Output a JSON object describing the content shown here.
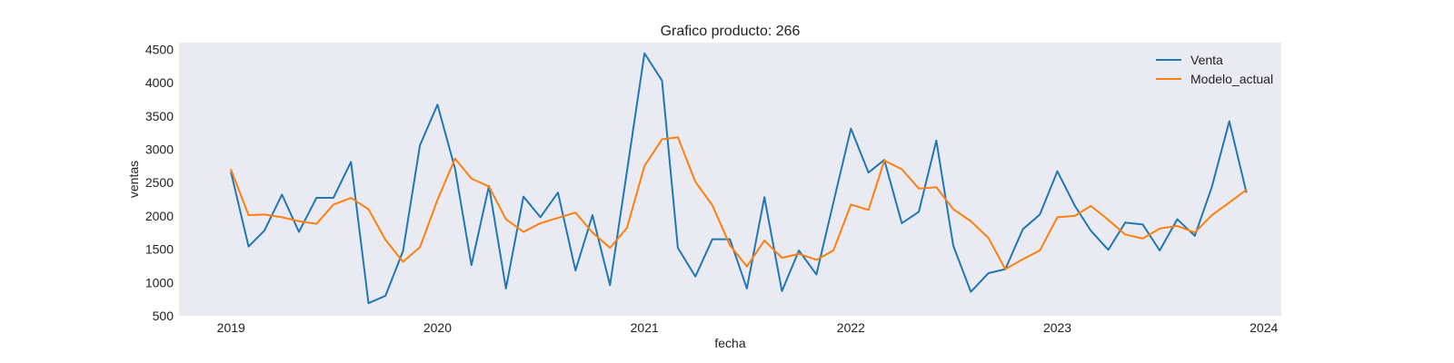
{
  "chart_data": {
    "type": "line",
    "title": "Grafico producto: 266",
    "xlabel": "fecha",
    "ylabel": "ventas",
    "xlim": [
      "2018-10-01",
      "2024-02-01"
    ],
    "ylim": [
      500,
      4600
    ],
    "x_ticks": [
      "2019",
      "2020",
      "2021",
      "2022",
      "2023",
      "2024"
    ],
    "y_ticks": [
      "500",
      "1000",
      "1500",
      "2000",
      "2500",
      "3000",
      "3500",
      "4000",
      "4500"
    ],
    "grid": false,
    "legend_position": "top-right",
    "x": [
      "2019-01",
      "2019-02",
      "2019-03",
      "2019-04",
      "2019-05",
      "2019-06",
      "2019-07",
      "2019-08",
      "2019-09",
      "2019-10",
      "2019-11",
      "2019-12",
      "2020-01",
      "2020-02",
      "2020-03",
      "2020-04",
      "2020-05",
      "2020-06",
      "2020-07",
      "2020-08",
      "2020-09",
      "2020-10",
      "2020-11",
      "2020-12",
      "2021-01",
      "2021-02",
      "2021-03",
      "2021-04",
      "2021-05",
      "2021-06",
      "2021-07",
      "2021-08",
      "2021-09",
      "2021-10",
      "2021-11",
      "2021-12",
      "2022-01",
      "2022-02",
      "2022-03",
      "2022-04",
      "2022-05",
      "2022-06",
      "2022-07",
      "2022-08",
      "2022-09",
      "2022-10",
      "2022-11",
      "2022-12",
      "2023-01",
      "2023-02",
      "2023-03",
      "2023-04",
      "2023-05",
      "2023-06",
      "2023-07",
      "2023-08",
      "2023-09",
      "2023-10",
      "2023-11",
      "2023-12"
    ],
    "series": [
      {
        "name": "Venta",
        "color": "#1f77b4",
        "values": [
          2650,
          1540,
          1780,
          2320,
          1760,
          2270,
          2270,
          2810,
          690,
          800,
          1470,
          3060,
          3670,
          2710,
          1260,
          2450,
          910,
          2290,
          1980,
          2350,
          1180,
          2010,
          960,
          2670,
          4440,
          4030,
          1520,
          1090,
          1650,
          1650,
          910,
          2280,
          870,
          1480,
          1120,
          2200,
          3310,
          2650,
          2840,
          1890,
          2060,
          3130,
          1550,
          860,
          1140,
          1200,
          1800,
          2020,
          2670,
          2150,
          1780,
          1490,
          1900,
          1870,
          1480,
          1950,
          1700,
          2430,
          3420,
          2360
        ]
      },
      {
        "name": "Modelo_actual",
        "color": "#ff7f0e",
        "values": [
          2690,
          2010,
          2020,
          1980,
          1920,
          1880,
          2170,
          2270,
          2100,
          1640,
          1310,
          1530,
          2240,
          2860,
          2560,
          2440,
          1950,
          1760,
          1890,
          1970,
          2050,
          1750,
          1520,
          1820,
          2750,
          3150,
          3180,
          2510,
          2160,
          1560,
          1240,
          1630,
          1370,
          1430,
          1340,
          1480,
          2170,
          2090,
          2830,
          2700,
          2410,
          2430,
          2100,
          1920,
          1670,
          1200,
          1350,
          1480,
          1980,
          2000,
          2150,
          1940,
          1720,
          1660,
          1810,
          1850,
          1750,
          2010,
          2200,
          2390
        ]
      }
    ]
  }
}
